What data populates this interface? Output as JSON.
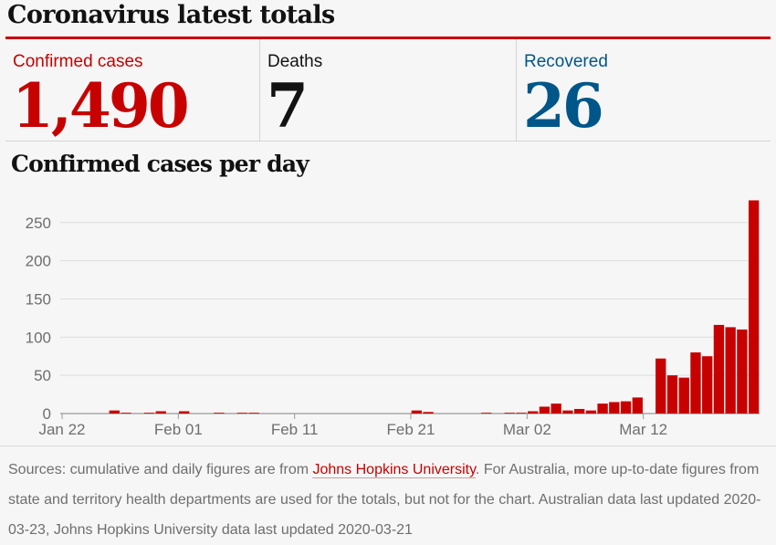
{
  "headline": "Coronavirus latest totals",
  "stats": [
    {
      "label": "Confirmed cases",
      "value": "1,490",
      "color": "#c70000"
    },
    {
      "label": "Deaths",
      "value": "7",
      "color": "#121212"
    },
    {
      "label": "Recovered",
      "value": "26",
      "color": "#005689"
    }
  ],
  "chart_data": {
    "type": "bar",
    "title": "Confirmed cases per day",
    "xlabel": "",
    "ylabel": "",
    "ylim": [
      0,
      280
    ],
    "yticks": [
      0,
      50,
      100,
      150,
      200,
      250
    ],
    "grid": true,
    "bar_color": "#c70000",
    "categories": [
      "Jan 22",
      "Jan 23",
      "Jan 24",
      "Jan 25",
      "Jan 26",
      "Jan 27",
      "Jan 28",
      "Jan 29",
      "Jan 30",
      "Jan 31",
      "Feb 01",
      "Feb 02",
      "Feb 03",
      "Feb 04",
      "Feb 05",
      "Feb 06",
      "Feb 07",
      "Feb 08",
      "Feb 09",
      "Feb 10",
      "Feb 11",
      "Feb 12",
      "Feb 13",
      "Feb 14",
      "Feb 15",
      "Feb 16",
      "Feb 17",
      "Feb 18",
      "Feb 19",
      "Feb 20",
      "Feb 21",
      "Feb 22",
      "Feb 23",
      "Feb 24",
      "Feb 25",
      "Feb 26",
      "Feb 27",
      "Feb 28",
      "Feb 29",
      "Mar 01",
      "Mar 02",
      "Mar 03",
      "Mar 04",
      "Mar 05",
      "Mar 06",
      "Mar 07",
      "Mar 08",
      "Mar 09",
      "Mar 10",
      "Mar 11",
      "Mar 12",
      "Mar 13",
      "Mar 14",
      "Mar 15",
      "Mar 16",
      "Mar 17",
      "Mar 18",
      "Mar 19",
      "Mar 20",
      "Mar 21"
    ],
    "values": [
      0,
      0,
      0,
      0,
      4,
      1,
      0,
      1,
      3,
      0,
      3,
      0,
      0,
      1,
      0,
      1,
      1,
      0,
      0,
      0,
      0,
      0,
      0,
      0,
      0,
      0,
      0,
      0,
      0,
      0,
      4,
      2,
      0,
      0,
      0,
      0,
      1,
      0,
      1,
      1,
      3,
      9,
      13,
      4,
      6,
      4,
      13,
      15,
      16,
      21,
      0,
      72,
      50,
      47,
      80,
      75,
      116,
      113,
      110,
      279
    ],
    "xtick_labels": [
      {
        "index": 0,
        "label": "Jan 22"
      },
      {
        "index": 10,
        "label": "Feb 01"
      },
      {
        "index": 20,
        "label": "Feb 11"
      },
      {
        "index": 30,
        "label": "Feb 21"
      },
      {
        "index": 40,
        "label": "Mar 02"
      },
      {
        "index": 50,
        "label": "Mar 12"
      }
    ]
  },
  "sources": {
    "prefix": "Sources: cumulative and daily figures are from ",
    "link_text": "Johns Hopkins University",
    "suffix": ". For Australia, more up-to-date figures from state and territory health departments are used for the totals, but not for the chart. Australian data last updated 2020-03-23, Johns Hopkins University data last updated 2020-03-21"
  }
}
